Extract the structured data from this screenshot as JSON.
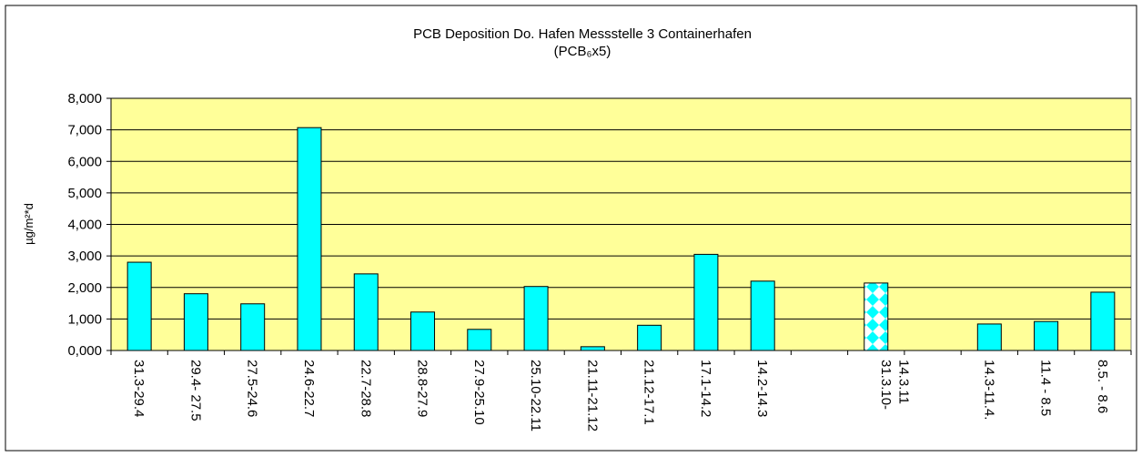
{
  "chart_data": {
    "type": "bar",
    "title": "PCB Deposition Do. Hafen Messstelle 3 Containerhafen",
    "subtitle": "(PCB₆x5)",
    "y_label": "µg/m²*d",
    "categories": [
      "31.3-29.4",
      "29.4- 27.5",
      "27.5-24.6",
      "24.6-22.7",
      "22.7-28.8",
      "28.8-27.9",
      "27.9-25.10",
      "25.10-22.11",
      "21.11-21.12",
      "21.12-17.1",
      "17.1-14.2",
      "14.2-14.3",
      null,
      "31.3.10-\n14.3.11",
      null,
      "14.3-11.4.",
      "11.4 - 8.5",
      "8.5. - 8.6"
    ],
    "values": [
      2800,
      1800,
      1480,
      7070,
      2430,
      1220,
      670,
      2030,
      120,
      800,
      3050,
      2200,
      null,
      2140,
      null,
      840,
      920,
      1850
    ],
    "fill_patterns": [
      "solid",
      "solid",
      "solid",
      "solid",
      "solid",
      "solid",
      "solid",
      "solid",
      "solid",
      "solid",
      "solid",
      "solid",
      null,
      "diamonds",
      null,
      "solid",
      "solid",
      "solid"
    ],
    "color": "#00ffff",
    "plot_background": "#ffff99",
    "ylim": [
      0,
      8000
    ],
    "yticks": [
      {
        "value": 0,
        "label": "0,000"
      },
      {
        "value": 1000,
        "label": "1,000"
      },
      {
        "value": 2000,
        "label": "2,000"
      },
      {
        "value": 3000,
        "label": "3,000"
      },
      {
        "value": 4000,
        "label": "4,000"
      },
      {
        "value": 5000,
        "label": "5,000"
      },
      {
        "value": 6000,
        "label": "6,000"
      },
      {
        "value": 7000,
        "label": "7,000"
      },
      {
        "value": 8000,
        "label": "8,000"
      }
    ],
    "grid": true
  }
}
